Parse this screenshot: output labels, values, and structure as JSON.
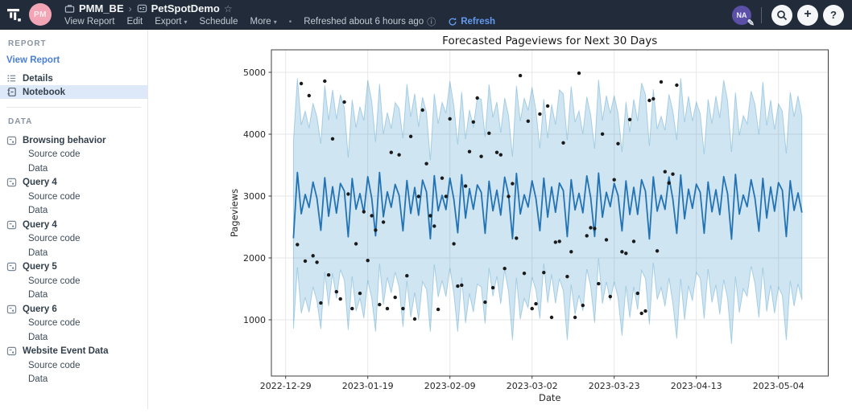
{
  "header": {
    "workspace": "PMM_BE",
    "report_title": "PetSpotDemo",
    "owner_initials": "PM",
    "user_initials": "NA",
    "menu": [
      "View Report",
      "Edit",
      "Export",
      "Schedule",
      "More"
    ],
    "refreshed_text": "Refreshed about 6 hours ago",
    "refresh_label": "Refresh",
    "colors": {
      "bar": "#212b3a",
      "refresh_blue": "#639af0",
      "avatar_pink": "#f2a6b5",
      "avatar_purple": "#5b4fa8"
    }
  },
  "sidebar": {
    "report_header": "REPORT",
    "view_report_label": "View Report",
    "report_items": [
      {
        "label": "Details",
        "selected": false
      },
      {
        "label": "Notebook",
        "selected": true
      }
    ],
    "data_header": "DATA",
    "data_sections": [
      {
        "label": "Browsing behavior",
        "children": [
          "Source code",
          "Data"
        ]
      },
      {
        "label": "Query 4",
        "children": [
          "Source code",
          "Data"
        ]
      },
      {
        "label": "Query 4",
        "children": [
          "Source code",
          "Data"
        ]
      },
      {
        "label": "Query 5",
        "children": [
          "Source code",
          "Data"
        ]
      },
      {
        "label": "Query 6",
        "children": [
          "Source code",
          "Data"
        ]
      },
      {
        "label": "Website Event Data",
        "children": [
          "Source code",
          "Data"
        ]
      }
    ]
  },
  "chart_data": {
    "type": "line",
    "title": "Forecasted Pageviews for Next 30 Days",
    "xlabel": "Date",
    "ylabel": "Pageviews",
    "grid": true,
    "legend": "none",
    "epoch_date": "2022-12-29",
    "x_tick_days": [
      0,
      21,
      42,
      63,
      84,
      105,
      126
    ],
    "x_tick_labels": [
      "2022-12-29",
      "2023-01-19",
      "2023-02-09",
      "2023-03-02",
      "2023-03-23",
      "2023-04-13",
      "2023-05-04"
    ],
    "y_ticks": [
      1000,
      2000,
      3000,
      4000,
      5000
    ],
    "ylim_approx": [
      90,
      5340
    ],
    "forecast_day_range": [
      2,
      132
    ],
    "forecast_model": {
      "description": "yhat = weekly_pattern[(day-2)%7] + a1*sin(w1*d+p1) + a2*sin(w2*d+p2); band = yhat +upper_offset/-lower_offset with own jitter",
      "weekly_pattern": [
        2290,
        3280,
        2760,
        3170,
        2820,
        3240,
        2940
      ],
      "jitter": {
        "a1": 90,
        "w1": 0.9,
        "p1": 0.0,
        "a2": 70,
        "w2": 2.13,
        "p2": 1.0
      },
      "upper_offset": 1420,
      "upper_jitter": {
        "a": 150,
        "w": 0.63,
        "p": 0.5
      },
      "lower_offset": 1540,
      "lower_jitter": {
        "a": 160,
        "w": 0.47,
        "p": 1.7
      }
    },
    "actuals_series_name": "actual daily pageviews (black dots)",
    "actuals": [
      [
        3,
        2216
      ],
      [
        4,
        4818
      ],
      [
        5,
        1950
      ],
      [
        6,
        4624
      ],
      [
        7,
        2035
      ],
      [
        8,
        1930
      ],
      [
        9,
        1272
      ],
      [
        10,
        4857
      ],
      [
        11,
        1725
      ],
      [
        12,
        3925
      ],
      [
        13,
        1453
      ],
      [
        14,
        1336
      ],
      [
        15,
        4520
      ],
      [
        16,
        3032
      ],
      [
        17,
        1181
      ],
      [
        18,
        2229
      ],
      [
        19,
        1427
      ],
      [
        20,
        2747
      ],
      [
        21,
        1958
      ],
      [
        22,
        2682
      ],
      [
        23,
        2449
      ],
      [
        24,
        1246
      ],
      [
        25,
        2579
      ],
      [
        26,
        1181
      ],
      [
        27,
        3705
      ],
      [
        28,
        1362
      ],
      [
        29,
        3666
      ],
      [
        30,
        1181
      ],
      [
        31,
        1712
      ],
      [
        32,
        3964
      ],
      [
        33,
        1013
      ],
      [
        34,
        2993
      ],
      [
        35,
        4390
      ],
      [
        36,
        3523
      ],
      [
        37,
        2682
      ],
      [
        38,
        2514
      ],
      [
        39,
        1168
      ],
      [
        40,
        3290
      ],
      [
        41,
        2993
      ],
      [
        42,
        4248
      ],
      [
        43,
        2229
      ],
      [
        44,
        1544
      ],
      [
        45,
        1560
      ],
      [
        46,
        3161
      ],
      [
        47,
        3718
      ],
      [
        48,
        4197
      ],
      [
        49,
        4585
      ],
      [
        50,
        3640
      ],
      [
        51,
        1285
      ],
      [
        52,
        4016
      ],
      [
        53,
        1518
      ],
      [
        54,
        3705
      ],
      [
        55,
        3666
      ],
      [
        56,
        1828
      ],
      [
        57,
        2993
      ],
      [
        58,
        3200
      ],
      [
        59,
        2320
      ],
      [
        60,
        4947
      ],
      [
        61,
        1751
      ],
      [
        62,
        4210
      ],
      [
        63,
        1181
      ],
      [
        64,
        1259
      ],
      [
        65,
        4326
      ],
      [
        66,
        1764
      ],
      [
        67,
        4456
      ],
      [
        68,
        1039
      ],
      [
        69,
        2255
      ],
      [
        70,
        2268
      ],
      [
        71,
        3860
      ],
      [
        72,
        1699
      ],
      [
        73,
        2100
      ],
      [
        74,
        1039
      ],
      [
        75,
        4986
      ],
      [
        76,
        1233
      ],
      [
        77,
        2359
      ],
      [
        78,
        2488
      ],
      [
        79,
        2475
      ],
      [
        80,
        1583
      ],
      [
        81,
        4003
      ],
      [
        82,
        2294
      ],
      [
        83,
        1375
      ],
      [
        84,
        3264
      ],
      [
        85,
        3847
      ],
      [
        86,
        2100
      ],
      [
        87,
        2074
      ],
      [
        88,
        4236
      ],
      [
        89,
        2268
      ],
      [
        90,
        1427
      ],
      [
        91,
        1104
      ],
      [
        92,
        1142
      ],
      [
        93,
        4546
      ],
      [
        94,
        4572
      ],
      [
        95,
        2113
      ],
      [
        96,
        4844
      ],
      [
        97,
        3394
      ],
      [
        98,
        3212
      ],
      [
        99,
        3355
      ],
      [
        100,
        4792
      ]
    ],
    "colors": {
      "forecast_line": "#2373b4",
      "band_fill": "rgba(2,115,180,0.19)",
      "band_edge": "rgba(2,115,180,0.28)",
      "dots": "#1a1a1a",
      "grid": "#e7e7e7",
      "spine": "#3c3c3c",
      "text": "#262626"
    }
  }
}
